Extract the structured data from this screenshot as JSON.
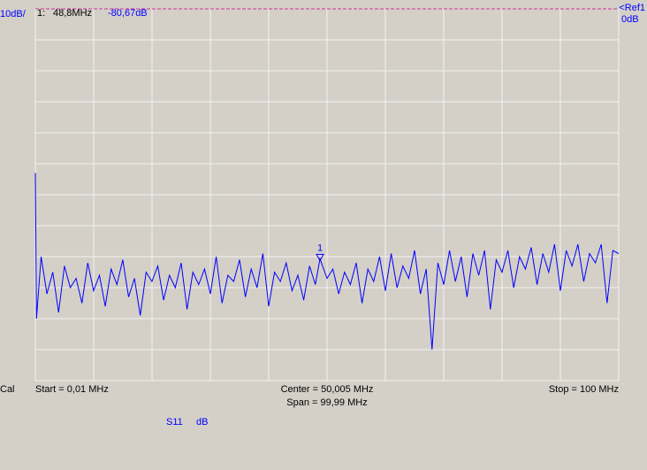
{
  "chart_data": {
    "type": "line",
    "scale_label": "10dB/",
    "ref_label": "<Ref1",
    "ref_value_label": "0dB",
    "ref_color": "#cc3399",
    "status": "Cal",
    "start_label": "Start = 0,01 MHz",
    "center_label": "Center = 50,005 MHz",
    "span_label": "Span = 99,99 MHz",
    "stop_label": "Stop = 100 MHz",
    "parameter": "S11",
    "unit": "dB",
    "marker": {
      "index_label": "1:",
      "label": "1",
      "x": 48.8,
      "y": -80.67,
      "x_label": "48,8MHz",
      "y_label": "-80,67dB"
    },
    "color": "#0000ff",
    "xlim": [
      0.01,
      100
    ],
    "ylim": [
      -120,
      0
    ],
    "x_divisions": 10,
    "y_divisions": 12,
    "grid": true,
    "x": [
      0.01,
      0.2,
      1,
      2,
      3,
      4,
      5,
      6,
      7,
      8,
      9,
      10,
      11,
      12,
      13,
      14,
      15,
      16,
      17,
      18,
      19,
      20,
      21,
      22,
      23,
      24,
      25,
      26,
      27,
      28,
      29,
      30,
      31,
      32,
      33,
      34,
      35,
      36,
      37,
      38,
      39,
      40,
      41,
      42,
      43,
      44,
      45,
      46,
      47,
      48,
      48.8,
      50,
      51,
      52,
      53,
      54,
      55,
      56,
      57,
      58,
      59,
      60,
      61,
      62,
      63,
      64,
      65,
      66,
      67,
      68,
      69,
      70,
      71,
      72,
      73,
      74,
      75,
      76,
      77,
      78,
      79,
      80,
      81,
      82,
      83,
      84,
      85,
      86,
      87,
      88,
      89,
      90,
      91,
      92,
      93,
      94,
      95,
      96,
      97,
      98,
      99,
      100
    ],
    "values": [
      -53,
      -100,
      -80,
      -92,
      -85,
      -98,
      -83,
      -90,
      -87,
      -95,
      -82,
      -91,
      -86,
      -96,
      -84,
      -89,
      -81,
      -93,
      -87,
      -99,
      -85,
      -88,
      -83,
      -94,
      -86,
      -90,
      -82,
      -97,
      -85,
      -89,
      -84,
      -92,
      -80,
      -95,
      -86,
      -88,
      -81,
      -93,
      -84,
      -90,
      -79,
      -96,
      -85,
      -88,
      -82,
      -91,
      -86,
      -94,
      -83,
      -89,
      -80.67,
      -87,
      -84,
      -92,
      -85,
      -89,
      -82,
      -95,
      -84,
      -88,
      -80,
      -91,
      -79,
      -90,
      -83,
      -87,
      -78,
      -92,
      -84,
      -110,
      -82,
      -89,
      -78,
      -88,
      -80,
      -93,
      -79,
      -86,
      -78,
      -97,
      -81,
      -85,
      -78,
      -90,
      -80,
      -84,
      -77,
      -89,
      -79,
      -85,
      -76,
      -91,
      -78,
      -83,
      -76,
      -88,
      -79,
      -82,
      -76,
      -95,
      -78,
      -79
    ]
  }
}
